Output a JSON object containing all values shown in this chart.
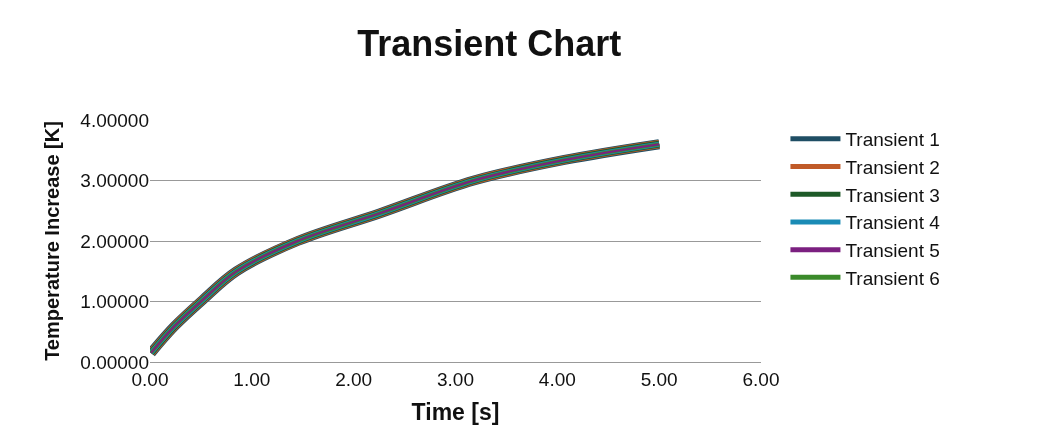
{
  "chart_data": {
    "type": "line",
    "title": "Transient Chart",
    "xlabel": "Time [s]",
    "ylabel": "Temperature Increase [K]",
    "x": [
      0.01,
      0.24,
      0.52,
      0.85,
      1.45,
      2.26,
      3.18,
      4.07,
      5.0
    ],
    "series": [
      {
        "name": "Transient 1",
        "color": "#1f4e64",
        "values": [
          0.15,
          0.59,
          1.03,
          1.5,
          2.0,
          2.46,
          3.0,
          3.34,
          3.6
        ]
      },
      {
        "name": "Transient 2",
        "color": "#c05a28",
        "values": [
          0.15,
          0.59,
          1.03,
          1.5,
          2.0,
          2.46,
          3.0,
          3.34,
          3.6
        ]
      },
      {
        "name": "Transient 3",
        "color": "#1e5a28",
        "values": [
          0.15,
          0.59,
          1.03,
          1.5,
          2.0,
          2.46,
          3.0,
          3.34,
          3.6
        ]
      },
      {
        "name": "Transient 4",
        "color": "#1a8bb5",
        "values": [
          0.15,
          0.59,
          1.03,
          1.5,
          2.0,
          2.46,
          3.0,
          3.34,
          3.6
        ]
      },
      {
        "name": "Transient 5",
        "color": "#7b2080",
        "values": [
          0.15,
          0.59,
          1.03,
          1.5,
          2.0,
          2.46,
          3.0,
          3.34,
          3.6
        ]
      },
      {
        "name": "Transient 6",
        "color": "#3a8a2a",
        "values": [
          0.15,
          0.59,
          1.03,
          1.5,
          2.0,
          2.46,
          3.0,
          3.34,
          3.6
        ]
      }
    ],
    "xlim": [
      0,
      6
    ],
    "xticks": [
      {
        "value": 0,
        "label": "0.00"
      },
      {
        "value": 1,
        "label": "1.00"
      },
      {
        "value": 2,
        "label": "2.00"
      },
      {
        "value": 3,
        "label": "3.00"
      },
      {
        "value": 4,
        "label": "4.00"
      },
      {
        "value": 5,
        "label": "5.00"
      },
      {
        "value": 6,
        "label": "6.00"
      }
    ],
    "ylim": [
      0,
      4
    ],
    "yticks": [
      {
        "value": 0,
        "label": "0.00000"
      },
      {
        "value": 1,
        "label": "1.00000"
      },
      {
        "value": 2,
        "label": "2.00000"
      },
      {
        "value": 3,
        "label": "3.00000"
      },
      {
        "value": 4,
        "label": "4.00000"
      }
    ],
    "grid": "y",
    "legend": "right",
    "marker": "none",
    "line_style": "solid"
  }
}
